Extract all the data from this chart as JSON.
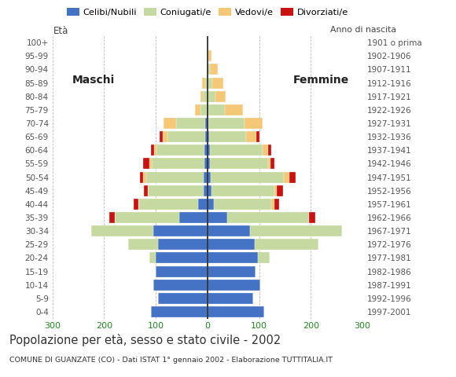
{
  "age_groups": [
    "0-4",
    "5-9",
    "10-14",
    "15-19",
    "20-24",
    "25-29",
    "30-34",
    "35-39",
    "40-44",
    "45-49",
    "50-54",
    "55-59",
    "60-64",
    "65-69",
    "70-74",
    "75-79",
    "80-84",
    "85-89",
    "90-94",
    "95-99",
    "100+"
  ],
  "birth_years": [
    "1997-2001",
    "1992-1996",
    "1987-1991",
    "1982-1986",
    "1977-1981",
    "1972-1976",
    "1967-1971",
    "1962-1966",
    "1957-1961",
    "1952-1956",
    "1947-1951",
    "1942-1946",
    "1937-1941",
    "1932-1936",
    "1927-1931",
    "1922-1926",
    "1917-1921",
    "1912-1916",
    "1907-1911",
    "1902-1906",
    "1901 o prima"
  ],
  "male": {
    "celibi": [
      110,
      95,
      105,
      100,
      100,
      95,
      105,
      55,
      18,
      8,
      7,
      6,
      6,
      5,
      5,
      2,
      1,
      0,
      0,
      0,
      0
    ],
    "coniugati": [
      0,
      0,
      0,
      0,
      12,
      58,
      120,
      125,
      115,
      108,
      112,
      102,
      92,
      72,
      55,
      12,
      8,
      5,
      2,
      0,
      0
    ],
    "vedovi": [
      0,
      0,
      0,
      0,
      0,
      0,
      0,
      0,
      0,
      0,
      5,
      5,
      5,
      10,
      25,
      10,
      5,
      5,
      0,
      0,
      0
    ],
    "divorziati": [
      0,
      0,
      0,
      0,
      0,
      0,
      0,
      10,
      10,
      7,
      7,
      12,
      7,
      5,
      0,
      0,
      0,
      0,
      0,
      0,
      0
    ]
  },
  "female": {
    "nubili": [
      110,
      88,
      102,
      93,
      98,
      92,
      82,
      38,
      12,
      7,
      6,
      5,
      5,
      3,
      2,
      1,
      0,
      0,
      0,
      0,
      0
    ],
    "coniugate": [
      0,
      0,
      0,
      0,
      22,
      122,
      178,
      158,
      112,
      122,
      142,
      112,
      102,
      72,
      70,
      32,
      15,
      10,
      5,
      2,
      0
    ],
    "vedove": [
      0,
      0,
      0,
      0,
      0,
      0,
      0,
      0,
      5,
      5,
      10,
      5,
      10,
      20,
      35,
      35,
      20,
      20,
      15,
      5,
      0
    ],
    "divorziate": [
      0,
      0,
      0,
      0,
      0,
      0,
      0,
      12,
      10,
      12,
      12,
      7,
      7,
      5,
      0,
      0,
      0,
      0,
      0,
      0,
      0
    ]
  },
  "colors": {
    "celibi": "#4472c4",
    "coniugati": "#c5d9a0",
    "vedovi": "#f5c878",
    "divorziati": "#cc1111"
  },
  "title": "Popolazione per età, sesso e stato civile - 2002",
  "subtitle": "COMUNE DI GUANZATE (CO) - Dati ISTAT 1° gennaio 2002 - Elaborazione TUTTITALIA.IT",
  "legend_labels": [
    "Celibi/Nubili",
    "Coniugati/e",
    "Vedovi/e",
    "Divorziati/e"
  ],
  "xlim": 300,
  "ylabel_left": "Età",
  "ylabel_right": "Anno di nascita",
  "label_maschi": "Maschi",
  "label_femmine": "Femmine",
  "bg_color": "#ffffff"
}
